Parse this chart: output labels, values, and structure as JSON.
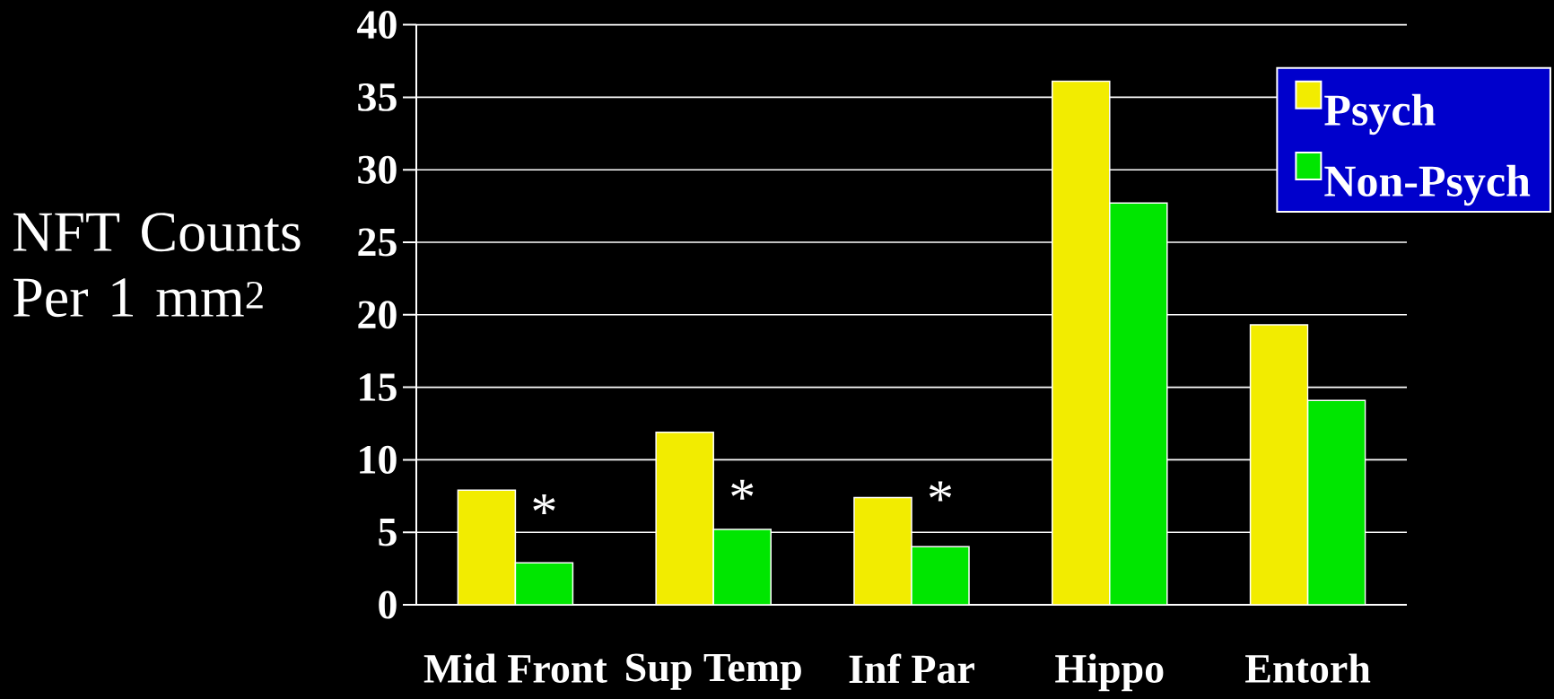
{
  "chart_data": {
    "type": "bar",
    "ylabel": "NFT Counts Per 1 mm$^{2}$",
    "categories": [
      "Mid Front",
      "Sup Temp",
      "Inf Par",
      "Hippo",
      "Entorh"
    ],
    "series": [
      {
        "name": "Psych",
        "color": "#f2ec00",
        "values": [
          7.9,
          11.9,
          7.4,
          36.1,
          19.3
        ]
      },
      {
        "name": "Non-Psych",
        "color": "#00e600",
        "values": [
          2.9,
          5.2,
          4.0,
          27.7,
          14.1
        ]
      }
    ],
    "ylim": [
      0,
      40
    ],
    "yticks": [
      0,
      5,
      10,
      15,
      20,
      25,
      30,
      35,
      40
    ],
    "grid": "y",
    "legend": "top right",
    "annotations": [
      {
        "text": "*",
        "x": "Mid Front",
        "y": 6.4
      },
      {
        "text": "*",
        "x": "Sup Temp",
        "y": 7.4
      },
      {
        "text": "*",
        "x": "Inf Par",
        "y": 7.3
      }
    ]
  }
}
